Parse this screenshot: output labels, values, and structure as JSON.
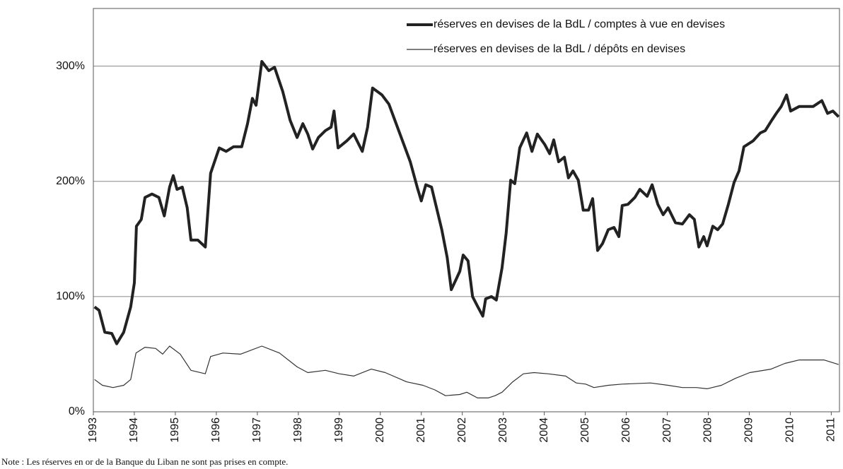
{
  "chart_data": {
    "type": "line",
    "series": [
      {
        "name": "réserves en devises de la BdL / comptes à vue en devises",
        "color": "#222222",
        "width": 4,
        "x": [
          1993.03,
          1993.14,
          1993.28,
          1993.45,
          1993.57,
          1993.74,
          1993.91,
          1994.0,
          1994.05,
          1994.17,
          1994.26,
          1994.43,
          1994.6,
          1994.73,
          1994.86,
          1994.95,
          1995.04,
          1995.17,
          1995.29,
          1995.38,
          1995.55,
          1995.73,
          1995.86,
          1996.07,
          1996.24,
          1996.42,
          1996.62,
          1996.76,
          1996.88,
          1996.97,
          1997.11,
          1997.28,
          1997.42,
          1997.62,
          1997.8,
          1997.97,
          1998.11,
          1998.23,
          1998.35,
          1998.49,
          1998.66,
          1998.8,
          1998.87,
          1998.97,
          1999.18,
          1999.35,
          1999.56,
          1999.69,
          1999.81,
          2000.04,
          2000.21,
          2000.47,
          2000.73,
          2000.9,
          2001.0,
          2001.11,
          2001.25,
          2001.5,
          2001.63,
          2001.73,
          2001.85,
          2001.94,
          2002.02,
          2002.14,
          2002.25,
          2002.38,
          2002.5,
          2002.57,
          2002.71,
          2002.83,
          2002.97,
          2003.07,
          2003.18,
          2003.28,
          2003.4,
          2003.57,
          2003.7,
          2003.83,
          2004.01,
          2004.13,
          2004.23,
          2004.35,
          2004.49,
          2004.59,
          2004.7,
          2004.83,
          2004.95,
          2005.08,
          2005.18,
          2005.3,
          2005.42,
          2005.56,
          2005.7,
          2005.82,
          2005.9,
          2006.04,
          2006.21,
          2006.33,
          2006.51,
          2006.63,
          2006.77,
          2006.9,
          2007.02,
          2007.2,
          2007.37,
          2007.54,
          2007.66,
          2007.77,
          2007.89,
          2007.97,
          2008.11,
          2008.23,
          2008.35,
          2008.49,
          2008.63,
          2008.75,
          2008.87,
          2009.09,
          2009.27,
          2009.39,
          2009.53,
          2009.66,
          2009.78,
          2009.91,
          2010.01,
          2010.22,
          2010.56,
          2010.77,
          2010.91,
          2011.04,
          2011.18
        ],
        "values": [
          91,
          88,
          69,
          68,
          59,
          69,
          91,
          112,
          161,
          167,
          186,
          189,
          186,
          170,
          195,
          205,
          193,
          195,
          177,
          149,
          149,
          143,
          207,
          229,
          226,
          230,
          230,
          250,
          272,
          266,
          304,
          296,
          299,
          278,
          253,
          238,
          250,
          241,
          228,
          238,
          244,
          247,
          261,
          229,
          235,
          241,
          226,
          247,
          281,
          275,
          267,
          242,
          217,
          195,
          183,
          197,
          195,
          158,
          134,
          106,
          115,
          122,
          136,
          131,
          100,
          91,
          83,
          98,
          100,
          97,
          125,
          155,
          201,
          198,
          229,
          242,
          226,
          241,
          232,
          224,
          236,
          217,
          221,
          203,
          209,
          201,
          175,
          175,
          185,
          140,
          146,
          158,
          160,
          152,
          179,
          180,
          186,
          193,
          187,
          197,
          180,
          171,
          177,
          164,
          163,
          171,
          167,
          143,
          152,
          144,
          161,
          158,
          163,
          180,
          199,
          209,
          230,
          235,
          242,
          244,
          252,
          259,
          265,
          275,
          261,
          265,
          265,
          270,
          259,
          261,
          256
        ]
      },
      {
        "name": "réserves en devises de la BdL / dépôts en devises",
        "color": "#333333",
        "width": 1.2,
        "x": [
          1993.03,
          1993.22,
          1993.48,
          1993.74,
          1993.91,
          1994.04,
          1994.26,
          1994.52,
          1994.69,
          1994.86,
          1995.12,
          1995.38,
          1995.73,
          1995.86,
          1996.16,
          1996.59,
          1997.11,
          1997.54,
          1997.97,
          1998.23,
          1998.66,
          1999.0,
          1999.35,
          1999.78,
          2000.12,
          2000.64,
          2001.04,
          2001.33,
          2001.59,
          2001.94,
          2002.11,
          2002.37,
          2002.63,
          2002.8,
          2002.97,
          2003.23,
          2003.49,
          2003.75,
          2004.09,
          2004.52,
          2004.78,
          2005.01,
          2005.21,
          2005.56,
          2005.9,
          2006.59,
          2007.02,
          2007.37,
          2007.71,
          2007.97,
          2008.32,
          2008.66,
          2009.01,
          2009.53,
          2009.87,
          2010.22,
          2010.82,
          2011.18
        ],
        "values": [
          28,
          23,
          21,
          23,
          28,
          51,
          56,
          55,
          50,
          57,
          50,
          36,
          33,
          48,
          51,
          50,
          57,
          51,
          39,
          34,
          36,
          33,
          31,
          37,
          34,
          26,
          23,
          19,
          14,
          15,
          17,
          12,
          12,
          14,
          17,
          26,
          33,
          34,
          33,
          31,
          25,
          24,
          21,
          23,
          24,
          25,
          23,
          21,
          21,
          20,
          23,
          29,
          34,
          37,
          42,
          45,
          45,
          41
        ]
      }
    ],
    "xlim": [
      1993,
      2011.2
    ],
    "xticks": [
      1993,
      1994,
      1995,
      1996,
      1997,
      1998,
      1999,
      2000,
      2001,
      2002,
      2003,
      2004,
      2005,
      2006,
      2007,
      2008,
      2009,
      2010,
      2011
    ],
    "ylim": [
      0,
      350
    ],
    "yticks": [
      {
        "value": 0,
        "label": "0%"
      },
      {
        "value": 100,
        "label": "100%"
      },
      {
        "value": 200,
        "label": "200%"
      },
      {
        "value": 300,
        "label": "300%"
      }
    ],
    "grid": true,
    "legend": "upper right",
    "note": "Note : Les réserves en or de la Banque du Liban ne sont pas prises en compte."
  }
}
